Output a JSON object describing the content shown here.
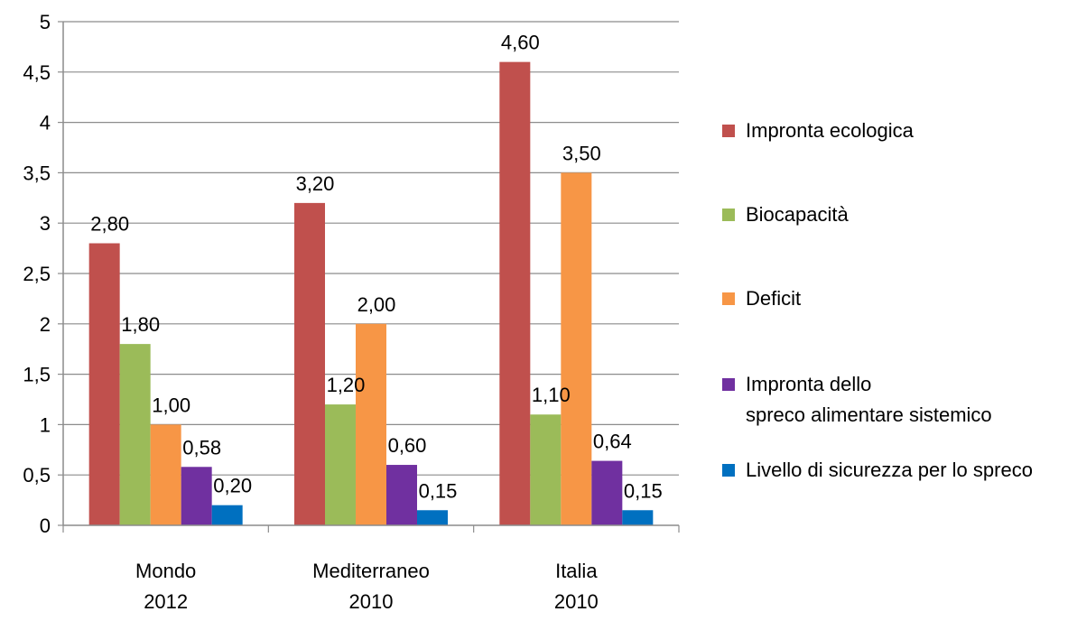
{
  "chart_data": {
    "type": "bar",
    "title": "",
    "xlabel": "",
    "ylabel": "",
    "ylim": [
      0,
      5
    ],
    "y_ticks": [
      "0",
      "0,5",
      "1",
      "1,5",
      "2",
      "2,5",
      "3",
      "3,5",
      "4",
      "4,5",
      "5"
    ],
    "y_tick_values": [
      0,
      0.5,
      1,
      1.5,
      2,
      2.5,
      3,
      3.5,
      4,
      4.5,
      5
    ],
    "grid": true,
    "legend_position": "right",
    "categories": [
      {
        "line1": "Mondo",
        "line2": "2012"
      },
      {
        "line1": "Mediterraneo",
        "line2": "2010"
      },
      {
        "line1": "Italia",
        "line2": "2010"
      }
    ],
    "series": [
      {
        "name_lines": [
          "Impronta ecologica"
        ],
        "color": "#C0504D",
        "values": [
          2.8,
          3.2,
          4.6
        ],
        "labels": [
          "2,80",
          "3,20",
          "4,60"
        ]
      },
      {
        "name_lines": [
          "Biocapacità"
        ],
        "color": "#9BBB59",
        "values": [
          1.8,
          1.2,
          1.1
        ],
        "labels": [
          "1,80",
          "1,20",
          "1,10"
        ]
      },
      {
        "name_lines": [
          "Deficit"
        ],
        "color": "#F79646",
        "values": [
          1.0,
          2.0,
          3.5
        ],
        "labels": [
          "1,00",
          "2,00",
          "3,50"
        ]
      },
      {
        "name_lines": [
          "Impronta dello",
          "spreco alimentare sistemico"
        ],
        "color": "#7030A0",
        "values": [
          0.58,
          0.6,
          0.64
        ],
        "labels": [
          "0,58",
          "0,60",
          "0,64"
        ]
      },
      {
        "name_lines": [
          "Livello di sicurezza per lo spreco"
        ],
        "color": "#0070C0",
        "values": [
          0.2,
          0.15,
          0.15
        ],
        "labels": [
          "0,20",
          "0,15",
          "0,15"
        ]
      }
    ]
  }
}
